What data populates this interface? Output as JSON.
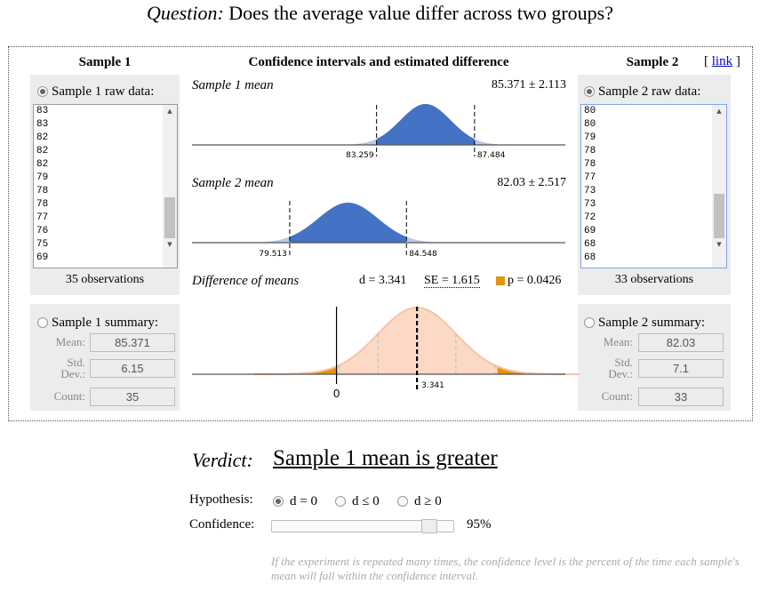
{
  "question": {
    "prefix": "Question:",
    "text": "Does the average value differ across two groups?"
  },
  "sample1": {
    "title": "Sample 1",
    "raw_label": "Sample 1 raw data:",
    "raw_values": [
      "83",
      "83",
      "82",
      "82",
      "82",
      "79",
      "78",
      "78",
      "77",
      "76",
      "75",
      "69"
    ],
    "observations": "35 observations",
    "summary_label": "Sample 1 summary:",
    "mean_label": "Mean:",
    "mean": "85.371",
    "sd_label": "Std. Dev.:",
    "sd": "6.15",
    "count_label": "Count:",
    "count": "35"
  },
  "sample2": {
    "title": "Sample 2",
    "raw_label": "Sample 2 raw data:",
    "raw_values": [
      "80",
      "80",
      "79",
      "78",
      "78",
      "77",
      "73",
      "73",
      "72",
      "69",
      "68",
      "68"
    ],
    "observations": "33 observations",
    "summary_label": "Sample 2 summary:",
    "mean_label": "Mean:",
    "mean": "82.03",
    "sd_label": "Std. Dev.:",
    "sd": "7.1",
    "count_label": "Count:",
    "count": "33"
  },
  "link_text": "link",
  "center": {
    "title": "Confidence intervals and estimated difference",
    "s1_label": "Sample 1 mean",
    "s1_value": "85.371 ± 2.113",
    "s1_low": "83.259",
    "s1_high": "87.484",
    "s2_label": "Sample 2 mean",
    "s2_value": "82.03 ± 2.517",
    "s2_low": "79.513",
    "s2_high": "84.548",
    "diff_label": "Difference of means",
    "d_text": "d = 3.341",
    "se_text": "SE = 1.615",
    "p_text": "p = 0.0426",
    "zero_label": "0",
    "d_tick": "3.341"
  },
  "colors": {
    "curve_blue": "#4472c4",
    "light_blue": "#b8c9ea",
    "peach": "#fbd9c4",
    "orange": "#e0960a"
  },
  "verdict": {
    "label": "Verdict:",
    "text": "Sample 1 mean is greater"
  },
  "hypothesis": {
    "label": "Hypothesis:",
    "options": [
      "d = 0",
      "d ≤ 0",
      "d ≥ 0"
    ],
    "selected": 0
  },
  "confidence": {
    "label": "Confidence:",
    "value_text": "95%",
    "level": 0.95
  },
  "note": "If the experiment is repeated many times, the confidence level is the percent of the time each sample's mean will fall within the confidence interval."
}
